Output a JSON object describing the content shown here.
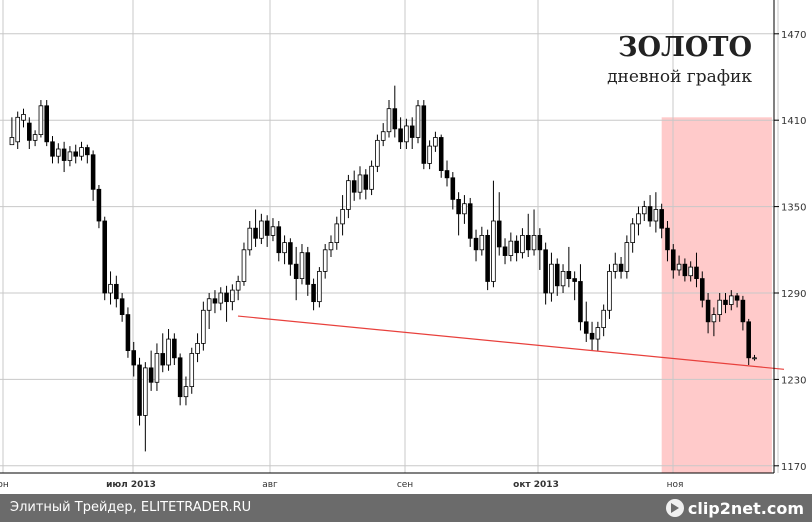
{
  "chart_data": {
    "type": "candlestick",
    "title": "ЗОЛОТО",
    "subtitle": "дневной график",
    "x_tick_labels": [
      "он",
      "июл 2013",
      "авг",
      "сен",
      "окт 2013",
      "ноя"
    ],
    "y_ticks": [
      1170,
      1230,
      1290,
      1350,
      1410,
      1470
    ],
    "ylim": [
      1165,
      1490
    ],
    "n_days": 130,
    "trendline": {
      "start_index": 40,
      "start_value": 1274,
      "end_index": 133,
      "end_value": 1237,
      "color": "#e8403c"
    },
    "highlight": {
      "start_index": 112,
      "end_index": 131,
      "color": "#ffc4c4"
    },
    "candles": [
      [
        1393,
        1398,
        1395,
        1412
      ],
      [
        1395,
        1412,
        1390,
        1416
      ],
      [
        1410,
        1414,
        1405,
        1418
      ],
      [
        1408,
        1396,
        1390,
        1412
      ],
      [
        1396,
        1400,
        1392,
        1403
      ],
      [
        1400,
        1420,
        1398,
        1424
      ],
      [
        1420,
        1395,
        1392,
        1424
      ],
      [
        1395,
        1385,
        1380,
        1399
      ],
      [
        1385,
        1390,
        1380,
        1394
      ],
      [
        1390,
        1382,
        1374,
        1395
      ],
      [
        1382,
        1388,
        1378,
        1392
      ],
      [
        1388,
        1385,
        1380,
        1393
      ],
      [
        1385,
        1391,
        1382,
        1395
      ],
      [
        1391,
        1386,
        1380,
        1393
      ],
      [
        1386,
        1362,
        1354,
        1389
      ],
      [
        1362,
        1340,
        1335,
        1365
      ],
      [
        1340,
        1290,
        1285,
        1343
      ],
      [
        1290,
        1296,
        1282,
        1305
      ],
      [
        1296,
        1286,
        1280,
        1302
      ],
      [
        1286,
        1275,
        1270,
        1290
      ],
      [
        1275,
        1250,
        1245,
        1280
      ],
      [
        1250,
        1240,
        1232,
        1256
      ],
      [
        1240,
        1205,
        1198,
        1245
      ],
      [
        1205,
        1238,
        1180,
        1242
      ],
      [
        1238,
        1228,
        1222,
        1250
      ],
      [
        1228,
        1248,
        1222,
        1255
      ],
      [
        1248,
        1240,
        1235,
        1262
      ],
      [
        1240,
        1258,
        1236,
        1265
      ],
      [
        1258,
        1245,
        1240,
        1262
      ],
      [
        1245,
        1218,
        1212,
        1248
      ],
      [
        1218,
        1225,
        1212,
        1232
      ],
      [
        1225,
        1248,
        1220,
        1252
      ],
      [
        1248,
        1255,
        1242,
        1262
      ],
      [
        1255,
        1278,
        1250,
        1284
      ],
      [
        1278,
        1286,
        1265,
        1290
      ],
      [
        1286,
        1283,
        1276,
        1292
      ],
      [
        1283,
        1290,
        1278,
        1294
      ],
      [
        1290,
        1284,
        1270,
        1295
      ],
      [
        1284,
        1292,
        1278,
        1296
      ],
      [
        1292,
        1298,
        1285,
        1302
      ],
      [
        1298,
        1320,
        1295,
        1325
      ],
      [
        1320,
        1335,
        1316,
        1340
      ],
      [
        1335,
        1328,
        1322,
        1348
      ],
      [
        1328,
        1340,
        1324,
        1345
      ],
      [
        1340,
        1330,
        1322,
        1344
      ],
      [
        1330,
        1336,
        1326,
        1342
      ],
      [
        1336,
        1318,
        1312,
        1340
      ],
      [
        1318,
        1325,
        1310,
        1330
      ],
      [
        1325,
        1310,
        1302,
        1328
      ],
      [
        1310,
        1300,
        1285,
        1322
      ],
      [
        1300,
        1318,
        1296,
        1324
      ],
      [
        1318,
        1296,
        1288,
        1322
      ],
      [
        1296,
        1284,
        1278,
        1300
      ],
      [
        1284,
        1305,
        1280,
        1308
      ],
      [
        1305,
        1320,
        1300,
        1324
      ],
      [
        1320,
        1325,
        1315,
        1330
      ],
      [
        1325,
        1338,
        1320,
        1343
      ],
      [
        1338,
        1348,
        1330,
        1358
      ],
      [
        1348,
        1368,
        1342,
        1372
      ],
      [
        1368,
        1360,
        1354,
        1375
      ],
      [
        1360,
        1372,
        1355,
        1378
      ],
      [
        1372,
        1362,
        1355,
        1376
      ],
      [
        1362,
        1378,
        1358,
        1382
      ],
      [
        1378,
        1396,
        1374,
        1400
      ],
      [
        1396,
        1402,
        1392,
        1408
      ],
      [
        1402,
        1418,
        1398,
        1424
      ],
      [
        1418,
        1404,
        1398,
        1434
      ],
      [
        1404,
        1395,
        1390,
        1412
      ],
      [
        1395,
        1406,
        1390,
        1411
      ],
      [
        1406,
        1398,
        1390,
        1412
      ],
      [
        1398,
        1420,
        1394,
        1424
      ],
      [
        1420,
        1380,
        1376,
        1424
      ],
      [
        1380,
        1392,
        1376,
        1396
      ],
      [
        1392,
        1398,
        1388,
        1402
      ],
      [
        1398,
        1375,
        1370,
        1400
      ],
      [
        1375,
        1370,
        1364,
        1382
      ],
      [
        1370,
        1355,
        1348,
        1374
      ],
      [
        1355,
        1345,
        1330,
        1360
      ],
      [
        1345,
        1352,
        1338,
        1358
      ],
      [
        1352,
        1328,
        1322,
        1356
      ],
      [
        1328,
        1320,
        1312,
        1334
      ],
      [
        1320,
        1330,
        1316,
        1336
      ],
      [
        1330,
        1298,
        1292,
        1334
      ],
      [
        1298,
        1340,
        1294,
        1368
      ],
      [
        1340,
        1322,
        1316,
        1360
      ],
      [
        1322,
        1316,
        1310,
        1328
      ],
      [
        1316,
        1326,
        1312,
        1332
      ],
      [
        1326,
        1318,
        1312,
        1330
      ],
      [
        1318,
        1330,
        1314,
        1335
      ],
      [
        1330,
        1320,
        1315,
        1345
      ],
      [
        1320,
        1330,
        1316,
        1348
      ],
      [
        1330,
        1320,
        1306,
        1335
      ],
      [
        1320,
        1290,
        1282,
        1325
      ],
      [
        1290,
        1310,
        1284,
        1318
      ],
      [
        1310,
        1295,
        1288,
        1314
      ],
      [
        1295,
        1305,
        1290,
        1310
      ],
      [
        1305,
        1300,
        1294,
        1322
      ],
      [
        1300,
        1298,
        1285,
        1305
      ],
      [
        1298,
        1270,
        1264,
        1310
      ],
      [
        1270,
        1262,
        1256,
        1284
      ],
      [
        1262,
        1258,
        1250,
        1270
      ],
      [
        1258,
        1266,
        1250,
        1270
      ],
      [
        1266,
        1278,
        1260,
        1282
      ],
      [
        1278,
        1305,
        1272,
        1310
      ],
      [
        1305,
        1310,
        1300,
        1318
      ],
      [
        1310,
        1305,
        1300,
        1315
      ],
      [
        1305,
        1325,
        1300,
        1330
      ],
      [
        1325,
        1338,
        1318,
        1342
      ],
      [
        1338,
        1345,
        1330,
        1350
      ],
      [
        1345,
        1350,
        1340,
        1354
      ],
      [
        1350,
        1340,
        1336,
        1358
      ],
      [
        1340,
        1348,
        1332,
        1360
      ],
      [
        1348,
        1335,
        1328,
        1352
      ],
      [
        1335,
        1320,
        1312,
        1340
      ],
      [
        1320,
        1306,
        1300,
        1324
      ],
      [
        1306,
        1310,
        1302,
        1316
      ],
      [
        1310,
        1302,
        1298,
        1314
      ],
      [
        1302,
        1308,
        1298,
        1312
      ],
      [
        1308,
        1300,
        1294,
        1318
      ],
      [
        1300,
        1285,
        1280,
        1305
      ],
      [
        1285,
        1270,
        1262,
        1290
      ],
      [
        1270,
        1275,
        1260,
        1280
      ],
      [
        1275,
        1285,
        1270,
        1290
      ],
      [
        1285,
        1282,
        1276,
        1290
      ],
      [
        1282,
        1288,
        1278,
        1292
      ],
      [
        1288,
        1285,
        1280,
        1290
      ],
      [
        1285,
        1270,
        1264,
        1288
      ],
      [
        1270,
        1245,
        1240,
        1272
      ],
      [
        1245,
        1245,
        1243,
        1247
      ]
    ],
    "colors": {
      "up": "#ffffff",
      "down": "#000000",
      "grid": "#c8c8c8",
      "axis": "#000000"
    }
  },
  "footer": {
    "text": "Элитный Трейдер, ELITETRADER.RU",
    "logo": "clip2net.com"
  },
  "icons": {
    "logo": "play-circle-icon"
  }
}
